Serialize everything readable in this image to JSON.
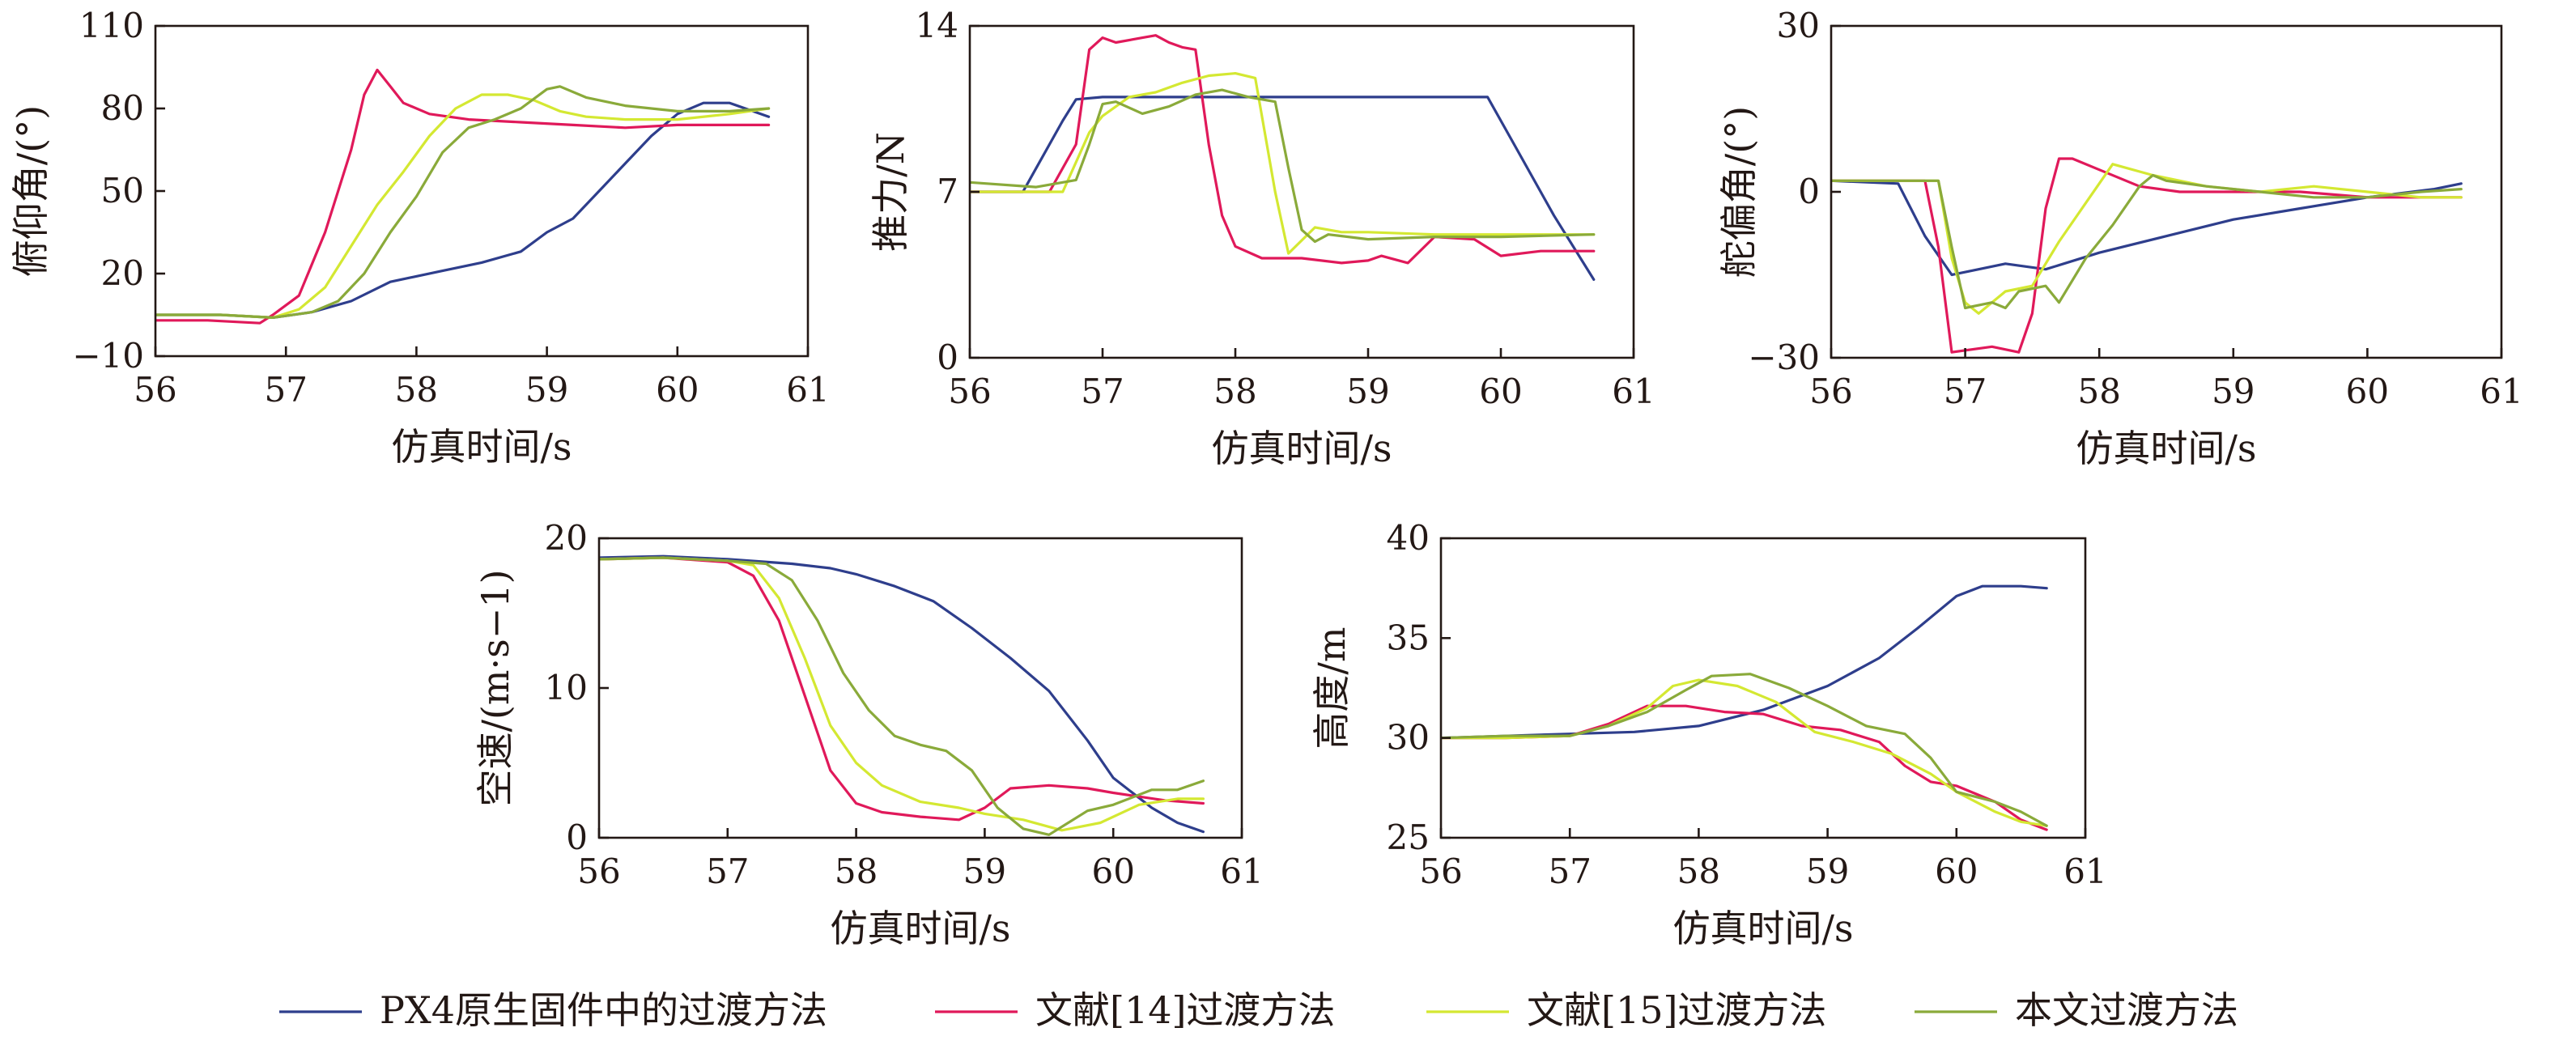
{
  "series_defs": [
    {
      "name": "PX4原生固件中的过渡方法",
      "color": "#2e3e8c"
    },
    {
      "name": "文献[14]过渡方法",
      "color": "#e0195a"
    },
    {
      "name": "文献[15]过渡方法",
      "color": "#d4e832"
    },
    {
      "name": "本文过渡方法",
      "color": "#8aaa3a"
    }
  ],
  "chart_data": [
    {
      "type": "line",
      "xlabel": "仿真时间/s",
      "ylabel": "俯仰角/(°)",
      "xlim": [
        56,
        61
      ],
      "ylim": [
        -10,
        110
      ],
      "xticks": [
        "56",
        "57",
        "58",
        "59",
        "60",
        "61"
      ],
      "yticks": [
        "−10",
        "20",
        "50",
        "80",
        "110"
      ],
      "xtick_values": [
        56,
        57,
        58,
        59,
        60,
        61
      ],
      "ytick_values": [
        -10,
        20,
        50,
        80,
        110
      ],
      "grid": false,
      "series": [
        {
          "x": [
            56,
            56.5,
            56.9,
            57.2,
            57.5,
            57.8,
            58.2,
            58.5,
            58.8,
            59.0,
            59.2,
            59.4,
            59.6,
            59.8,
            60.0,
            60.2,
            60.4,
            60.7
          ],
          "y": [
            5,
            5,
            4,
            6,
            10,
            17,
            21,
            24,
            28,
            35,
            40,
            50,
            60,
            70,
            78,
            82,
            82,
            77
          ]
        },
        {
          "x": [
            56,
            56.4,
            56.8,
            56.9,
            57.1,
            57.3,
            57.5,
            57.6,
            57.7,
            57.8,
            57.9,
            58.1,
            58.4,
            58.8,
            59.2,
            59.6,
            60.0,
            60.4,
            60.7
          ],
          "y": [
            3,
            3,
            2,
            5,
            12,
            35,
            65,
            85,
            94,
            88,
            82,
            78,
            76,
            75,
            74,
            73,
            74,
            74,
            74
          ]
        },
        {
          "x": [
            56,
            56.5,
            56.9,
            57.1,
            57.3,
            57.5,
            57.7,
            57.9,
            58.1,
            58.3,
            58.5,
            58.7,
            58.9,
            59.1,
            59.3,
            59.6,
            60.0,
            60.4,
            60.7
          ],
          "y": [
            5,
            5,
            4,
            7,
            15,
            30,
            45,
            57,
            70,
            80,
            85,
            85,
            83,
            79,
            77,
            76,
            76,
            78,
            80
          ]
        },
        {
          "x": [
            56,
            56.5,
            56.9,
            57.2,
            57.4,
            57.6,
            57.8,
            58.0,
            58.2,
            58.4,
            58.6,
            58.8,
            59.0,
            59.1,
            59.3,
            59.6,
            60.0,
            60.4,
            60.7
          ],
          "y": [
            5,
            5,
            4,
            6,
            10,
            20,
            35,
            48,
            64,
            73,
            76,
            80,
            87,
            88,
            84,
            81,
            79,
            79,
            80
          ]
        }
      ]
    },
    {
      "type": "line",
      "xlabel": "仿真时间/s",
      "ylabel": "推力/N",
      "xlim": [
        56,
        61
      ],
      "ylim": [
        0,
        14
      ],
      "xticks": [
        "56",
        "57",
        "58",
        "59",
        "60",
        "61"
      ],
      "yticks": [
        "0",
        "7",
        "14"
      ],
      "xtick_values": [
        56,
        57,
        58,
        59,
        60,
        61
      ],
      "ytick_values": [
        0,
        7,
        14
      ],
      "grid": false,
      "series": [
        {
          "x": [
            56,
            56.4,
            56.7,
            56.8,
            57.0,
            58.0,
            59.0,
            59.9,
            60.1,
            60.4,
            60.7
          ],
          "y": [
            7.0,
            7.0,
            10.0,
            10.9,
            11.0,
            11.0,
            11.0,
            11.0,
            9.0,
            6.0,
            3.3
          ]
        },
        {
          "x": [
            56,
            56.6,
            56.8,
            56.9,
            57.0,
            57.1,
            57.3,
            57.4,
            57.5,
            57.6,
            57.7,
            57.8,
            57.9,
            58.0,
            58.2,
            58.5,
            58.8,
            59.0,
            59.1,
            59.3,
            59.5,
            59.8,
            60.0,
            60.3,
            60.7
          ],
          "y": [
            7.0,
            7.0,
            9.0,
            13.0,
            13.5,
            13.3,
            13.5,
            13.6,
            13.3,
            13.1,
            13.0,
            9.0,
            6.0,
            4.7,
            4.2,
            4.2,
            4.0,
            4.1,
            4.3,
            4.0,
            5.1,
            5.0,
            4.3,
            4.5,
            4.5
          ]
        },
        {
          "x": [
            56,
            56.7,
            56.9,
            57.0,
            57.2,
            57.4,
            57.6,
            57.8,
            58.0,
            58.15,
            58.3,
            58.4,
            58.6,
            58.8,
            59.0,
            59.5,
            60.0,
            60.5,
            60.7
          ],
          "y": [
            7.0,
            7.0,
            9.5,
            10.2,
            11.0,
            11.2,
            11.6,
            11.9,
            12.0,
            11.8,
            7.0,
            4.4,
            5.5,
            5.3,
            5.3,
            5.2,
            5.2,
            5.2,
            5.2
          ]
        },
        {
          "x": [
            56,
            56.5,
            56.8,
            56.9,
            57.0,
            57.1,
            57.3,
            57.5,
            57.7,
            57.9,
            58.1,
            58.3,
            58.4,
            58.5,
            58.6,
            58.7,
            59.0,
            59.5,
            60.0,
            60.7
          ],
          "y": [
            7.4,
            7.2,
            7.5,
            9.0,
            10.7,
            10.8,
            10.3,
            10.6,
            11.1,
            11.3,
            11.0,
            10.8,
            8.0,
            5.4,
            4.9,
            5.2,
            5.0,
            5.1,
            5.1,
            5.2
          ]
        }
      ]
    },
    {
      "type": "line",
      "xlabel": "仿真时间/s",
      "ylabel": "舵偏角/(°)",
      "xlim": [
        56,
        61
      ],
      "ylim": [
        -30,
        30
      ],
      "xticks": [
        "56",
        "57",
        "58",
        "59",
        "60",
        "61"
      ],
      "yticks": [
        "−30",
        "0",
        "30"
      ],
      "xtick_values": [
        56,
        57,
        58,
        59,
        60,
        61
      ],
      "ytick_values": [
        -30,
        0,
        30
      ],
      "grid": false,
      "series": [
        {
          "x": [
            56,
            56.5,
            56.7,
            56.9,
            57.1,
            57.3,
            57.6,
            58.0,
            58.5,
            59.0,
            59.5,
            60.0,
            60.5,
            60.7
          ],
          "y": [
            2,
            1.5,
            -8,
            -15,
            -14,
            -13,
            -14,
            -11,
            -8,
            -5,
            -3,
            -1,
            0.5,
            1.5
          ]
        },
        {
          "x": [
            56,
            56.7,
            56.8,
            56.9,
            57.2,
            57.4,
            57.5,
            57.6,
            57.7,
            57.8,
            58.0,
            58.3,
            58.6,
            59.0,
            59.5,
            60.0,
            60.4,
            60.7
          ],
          "y": [
            2,
            2,
            -10,
            -29,
            -28,
            -29,
            -22,
            -3,
            6,
            6,
            4,
            1,
            0,
            0,
            0,
            -1,
            -1,
            -1
          ]
        },
        {
          "x": [
            56,
            56.8,
            56.9,
            57.0,
            57.1,
            57.3,
            57.5,
            57.7,
            57.9,
            58.1,
            58.4,
            58.8,
            59.2,
            59.6,
            60.0,
            60.4,
            60.7
          ],
          "y": [
            2,
            2,
            -12,
            -20,
            -22,
            -18,
            -17,
            -9,
            -2,
            5,
            3,
            1,
            0,
            1,
            0,
            -1,
            -1
          ]
        },
        {
          "x": [
            56,
            56.8,
            56.9,
            57.0,
            57.2,
            57.3,
            57.4,
            57.6,
            57.7,
            57.9,
            58.1,
            58.3,
            58.4,
            58.5,
            58.8,
            59.2,
            59.6,
            60.0,
            60.4,
            60.7
          ],
          "y": [
            2,
            2,
            -10,
            -21,
            -20,
            -21,
            -18,
            -17,
            -20,
            -12,
            -6,
            1,
            3,
            2,
            1,
            0,
            -1,
            -1,
            0,
            0.5
          ]
        }
      ]
    },
    {
      "type": "line",
      "xlabel": "仿真时间/s",
      "ylabel": "空速/(m·s−1)",
      "xlim": [
        56,
        61
      ],
      "ylim": [
        0,
        20
      ],
      "xticks": [
        "56",
        "57",
        "58",
        "59",
        "60",
        "61"
      ],
      "yticks": [
        "0",
        "10",
        "20"
      ],
      "xtick_values": [
        56,
        57,
        58,
        59,
        60,
        61
      ],
      "ytick_values": [
        0,
        10,
        20
      ],
      "grid": false,
      "series": [
        {
          "x": [
            56,
            56.5,
            57.0,
            57.5,
            57.8,
            58.0,
            58.3,
            58.6,
            58.9,
            59.2,
            59.5,
            59.8,
            60.0,
            60.3,
            60.5,
            60.7
          ],
          "y": [
            18.7,
            18.8,
            18.6,
            18.3,
            18.0,
            17.6,
            16.8,
            15.8,
            14.0,
            12.0,
            9.8,
            6.5,
            4.0,
            2.0,
            1.0,
            0.4
          ]
        },
        {
          "x": [
            56,
            56.5,
            57.0,
            57.2,
            57.4,
            57.6,
            57.8,
            58.0,
            58.2,
            58.5,
            58.8,
            59.0,
            59.2,
            59.5,
            59.8,
            60.0,
            60.4,
            60.7
          ],
          "y": [
            18.6,
            18.7,
            18.4,
            17.5,
            14.5,
            9.5,
            4.5,
            2.3,
            1.7,
            1.4,
            1.2,
            2.0,
            3.3,
            3.5,
            3.3,
            3.0,
            2.5,
            2.3
          ]
        },
        {
          "x": [
            56,
            56.5,
            57.0,
            57.2,
            57.4,
            57.6,
            57.8,
            58.0,
            58.2,
            58.5,
            58.8,
            59.0,
            59.3,
            59.6,
            59.9,
            60.2,
            60.5,
            60.7
          ],
          "y": [
            18.6,
            18.7,
            18.5,
            18.2,
            16.0,
            12.0,
            7.5,
            5.0,
            3.5,
            2.4,
            2.0,
            1.6,
            1.2,
            0.5,
            1.0,
            2.2,
            2.6,
            2.6
          ]
        },
        {
          "x": [
            56,
            56.5,
            57.0,
            57.3,
            57.5,
            57.7,
            57.9,
            58.1,
            58.3,
            58.5,
            58.7,
            58.9,
            59.1,
            59.3,
            59.5,
            59.8,
            60.0,
            60.3,
            60.5,
            60.7
          ],
          "y": [
            18.6,
            18.7,
            18.5,
            18.3,
            17.2,
            14.5,
            11.0,
            8.5,
            6.8,
            6.2,
            5.8,
            4.5,
            2.0,
            0.6,
            0.2,
            1.8,
            2.2,
            3.2,
            3.2,
            3.8
          ]
        }
      ]
    },
    {
      "type": "line",
      "xlabel": "仿真时间/s",
      "ylabel": "高度/m",
      "xlim": [
        56,
        61
      ],
      "ylim": [
        25,
        40
      ],
      "xticks": [
        "56",
        "57",
        "58",
        "59",
        "60",
        "61"
      ],
      "yticks": [
        "25",
        "30",
        "35",
        "40"
      ],
      "xtick_values": [
        56,
        57,
        58,
        59,
        60,
        61
      ],
      "ytick_values": [
        25,
        30,
        35,
        40
      ],
      "grid": false,
      "series": [
        {
          "x": [
            56,
            56.5,
            57.0,
            57.5,
            58.0,
            58.5,
            59.0,
            59.4,
            59.7,
            60.0,
            60.2,
            60.5,
            60.7
          ],
          "y": [
            30.0,
            30.1,
            30.2,
            30.3,
            30.6,
            31.4,
            32.6,
            34.0,
            35.5,
            37.1,
            37.6,
            37.6,
            37.5
          ]
        },
        {
          "x": [
            56,
            56.5,
            57.0,
            57.3,
            57.6,
            57.9,
            58.2,
            58.5,
            58.8,
            59.1,
            59.4,
            59.6,
            59.8,
            60.0,
            60.3,
            60.5,
            60.7
          ],
          "y": [
            30.0,
            30.0,
            30.1,
            30.7,
            31.6,
            31.6,
            31.3,
            31.2,
            30.6,
            30.4,
            29.8,
            28.6,
            27.8,
            27.6,
            26.8,
            25.9,
            25.4
          ]
        },
        {
          "x": [
            56,
            56.5,
            57.0,
            57.3,
            57.6,
            57.8,
            58.0,
            58.3,
            58.6,
            58.9,
            59.2,
            59.5,
            59.8,
            60.0,
            60.3,
            60.5,
            60.7
          ],
          "y": [
            30.0,
            30.0,
            30.1,
            30.6,
            31.5,
            32.6,
            32.9,
            32.6,
            31.8,
            30.3,
            29.8,
            29.2,
            28.2,
            27.3,
            26.3,
            25.8,
            25.6
          ]
        },
        {
          "x": [
            56,
            56.5,
            57.0,
            57.3,
            57.6,
            57.9,
            58.1,
            58.4,
            58.7,
            59.0,
            59.3,
            59.6,
            59.8,
            60.0,
            60.3,
            60.5,
            60.7
          ],
          "y": [
            30.0,
            30.1,
            30.1,
            30.6,
            31.3,
            32.4,
            33.1,
            33.2,
            32.5,
            31.6,
            30.6,
            30.2,
            29.0,
            27.3,
            26.8,
            26.3,
            25.6
          ]
        }
      ]
    }
  ]
}
